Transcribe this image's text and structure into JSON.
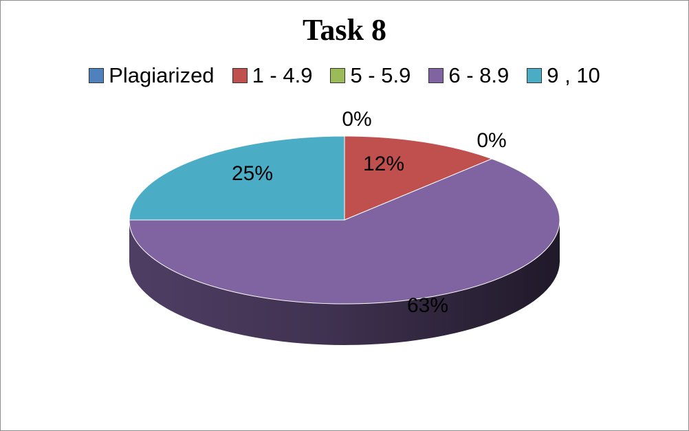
{
  "chart_data": {
    "type": "pie",
    "style": "3d",
    "title": "Task 8",
    "legend_position": "top",
    "categories": [
      "Plagiarized",
      "1 - 4.9",
      "5 - 5.9",
      "6 - 8.9",
      "9 , 10"
    ],
    "values": [
      0,
      12,
      0,
      63,
      25
    ],
    "labels": [
      "0%",
      "12%",
      "0%",
      "63%",
      "25%"
    ],
    "colors": [
      "#4f81bd",
      "#c0504d",
      "#9bbb59",
      "#8064a2",
      "#4bacc6"
    ]
  }
}
